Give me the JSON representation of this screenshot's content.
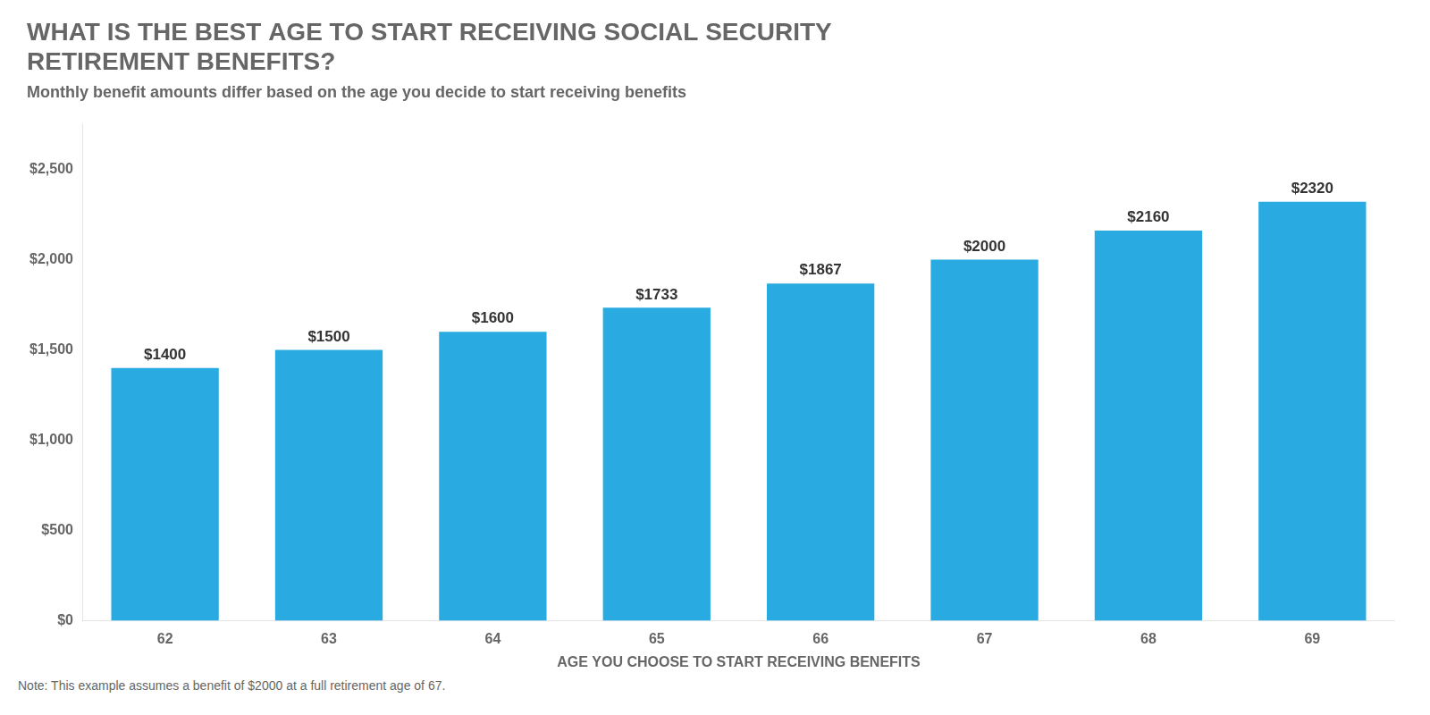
{
  "chart_data": {
    "type": "bar",
    "title": [
      "WHAT IS THE BEST AGE TO START RECEIVING SOCIAL SECURITY",
      "RETIREMENT BENEFITS?"
    ],
    "subtitle": "Monthly benefit amounts differ based on the age you decide to start receiving benefits",
    "annotations": [
      "Note: This example assumes a benefit of $2000 at a full retirement age of 67."
    ],
    "xlabel": "AGE YOU CHOOSE TO START RECEIVING BENEFITS",
    "categories": [
      "62",
      "63",
      "64",
      "65",
      "66",
      "67",
      "68",
      "69"
    ],
    "values": [
      1400,
      1500,
      1600,
      1733,
      1867,
      2000,
      2160,
      2320
    ],
    "value_labels": [
      "$1400",
      "$1500",
      "$1600",
      "$1733",
      "$1867",
      "$2000",
      "$2160",
      "$2320"
    ],
    "data_labels": true,
    "color": "#29ABE2",
    "ylim": [
      0,
      2750
    ],
    "yticks": [
      {
        "value": 0,
        "label": "$0"
      },
      {
        "value": 500,
        "label": "$500"
      },
      {
        "value": 1000,
        "label": "$1,000"
      },
      {
        "value": 1500,
        "label": "$1,500"
      },
      {
        "value": 2000,
        "label": "$2,000"
      },
      {
        "value": 2500,
        "label": "$2,500"
      }
    ],
    "grid": false
  }
}
